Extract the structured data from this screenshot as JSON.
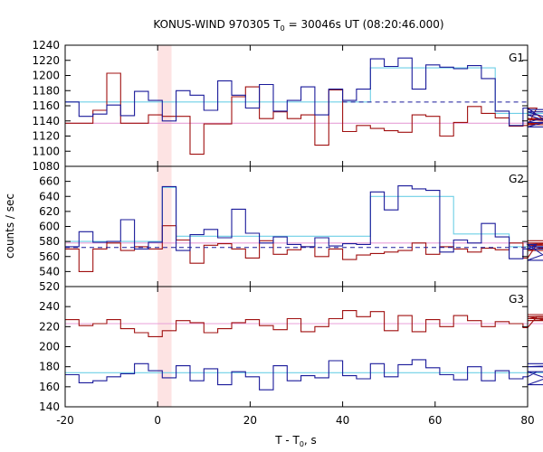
{
  "chart_data": {
    "type": "line",
    "title": "KONUS-WIND 970305 T",
    "title_sub": "0",
    "title_rest": " = 30046s UT (08:20:46.000)",
    "xlabel": "T - T",
    "xlabel_sub": "0",
    "xlabel_rest": ", s",
    "ylabel": "counts / sec",
    "xlim": [
      -20,
      80
    ],
    "xticks": [
      "-20",
      "0",
      "20",
      "40",
      "60",
      "80"
    ],
    "highlight_region": [
      0,
      3
    ],
    "bin_width": 3,
    "bin_start": -20,
    "colors": {
      "red": "#a01010",
      "blue": "#1a1a9a",
      "cyan": "#6ecfe6",
      "pink": "#e8a0d8",
      "highlight": "#fde3e3"
    },
    "panels": [
      {
        "label": "G1",
        "ylim": [
          1080,
          1240
        ],
        "yticks": [
          "1080",
          "1100",
          "1120",
          "1140",
          "1160",
          "1180",
          "1200",
          "1220",
          "1240"
        ],
        "series": [
          {
            "color": "red",
            "values": [
              1137,
              1137,
              1154,
              1203,
              1137,
              1137,
              1148,
              1146,
              1146,
              1096,
              1136,
              1136,
              1172,
              1185,
              1143,
              1152,
              1143,
              1148,
              1108,
              1181,
              1126,
              1134,
              1130,
              1127,
              1125,
              1148,
              1146,
              1120,
              1138,
              1159,
              1150,
              1144,
              1133,
              1134,
              1157,
              1135,
              1142,
              1137,
              1143
            ]
          },
          {
            "color": "blue",
            "values": [
              1165,
              1146,
              1149,
              1161,
              1147,
              1179,
              1167,
              1140,
              1180,
              1174,
              1154,
              1193,
              1174,
              1157,
              1188,
              1153,
              1167,
              1185,
              1148,
              1182,
              1167,
              1182,
              1222,
              1212,
              1223,
              1182,
              1214,
              1211,
              1209,
              1213,
              1196,
              1153,
              1134,
              1157,
              1148,
              1138,
              1152,
              1132,
              1155
            ]
          },
          {
            "color": "cyan",
            "values": [
              1165,
              1165,
              1165,
              1165,
              1165,
              1165,
              1165,
              1165,
              1165,
              1165,
              1165,
              1165,
              1165,
              1165,
              1165,
              1165,
              1165,
              1165,
              1165,
              1165,
              1165,
              1165,
              1210,
              1210,
              1210,
              1210,
              1210,
              1210,
              1210,
              1210,
              1210,
              1150,
              1150,
              1150,
              1150,
              1150,
              1150,
              1150,
              1150
            ]
          },
          {
            "color": "pink",
            "values": [
              1137,
              1137,
              1137,
              1137,
              1137,
              1137,
              1137,
              1137,
              1137,
              1137,
              1137,
              1137,
              1137,
              1137,
              1137,
              1137,
              1137,
              1137,
              1137,
              1137,
              1137,
              1137,
              1137,
              1137,
              1137,
              1137,
              1137,
              1137,
              1137,
              1137,
              1137,
              1137,
              1137,
              1137,
              1137,
              1137,
              1137,
              1137,
              1137
            ]
          }
        ],
        "dashed": [
          {
            "color": "blue",
            "x": [
              40,
              80
            ],
            "y": [
              1165,
              1165
            ]
          }
        ]
      },
      {
        "label": "G2",
        "ylim": [
          520,
          680
        ],
        "yticks": [
          "520",
          "540",
          "560",
          "580",
          "600",
          "620",
          "640",
          "660"
        ],
        "series": [
          {
            "color": "red",
            "values": [
              570,
              540,
              570,
              578,
              568,
              573,
              570,
              601,
              582,
              551,
              575,
              577,
              570,
              558,
              581,
              563,
              569,
              573,
              560,
              570,
              556,
              562,
              564,
              566,
              568,
              578,
              563,
              573,
              570,
              566,
              571,
              569,
              578,
              558,
              576,
              568,
              578,
              575,
              581
            ]
          },
          {
            "color": "blue",
            "values": [
              573,
              593,
              579,
              580,
              609,
              570,
              579,
              653,
              568,
              589,
              596,
              585,
              623,
              591,
              578,
              586,
              576,
              573,
              585,
              574,
              577,
              576,
              646,
              622,
              654,
              650,
              648,
              566,
              582,
              578,
              604,
              586,
              557,
              570,
              576,
              555,
              573,
              573,
              570
            ]
          },
          {
            "color": "cyan",
            "values": [
              580,
              580,
              580,
              580,
              580,
              580,
              580,
              652,
              587,
              587,
              587,
              587,
              587,
              587,
              587,
              587,
              587,
              587,
              587,
              587,
              587,
              587,
              640,
              640,
              640,
              640,
              640,
              640,
              590,
              590,
              590,
              590,
              573,
              573,
              573,
              573,
              573,
              573,
              573
            ]
          },
          {
            "color": "pink",
            "values": [
              578,
              578,
              578,
              578,
              578,
              578,
              578,
              578,
              578,
              578,
              578,
              578,
              578,
              578,
              578,
              578,
              578,
              578,
              578,
              578,
              578,
              578,
              578,
              578,
              578,
              578,
              578,
              578,
              578,
              578,
              578,
              578,
              578,
              578,
              578,
              578,
              578,
              578,
              578
            ]
          }
        ],
        "dashed": [
          {
            "color": "blue",
            "x": [
              -20,
              80
            ],
            "y": [
              572,
              572
            ]
          }
        ]
      },
      {
        "label": "G3",
        "ylim": [
          140,
          260
        ],
        "yticks": [
          "140",
          "160",
          "180",
          "200",
          "220",
          "240"
        ],
        "series": [
          {
            "color": "red",
            "values": [
              227,
              221,
              223,
              227,
              218,
              214,
              210,
              216,
              226,
              224,
              214,
              218,
              224,
              227,
              221,
              217,
              228,
              215,
              220,
              228,
              236,
              230,
              235,
              216,
              231,
              215,
              227,
              220,
              231,
              226,
              220,
              225,
              223,
              219,
              230,
              226,
              228,
              230,
              232
            ]
          },
          {
            "color": "blue",
            "values": [
              172,
              164,
              166,
              170,
              173,
              183,
              176,
              169,
              181,
              166,
              178,
              162,
              175,
              170,
              157,
              181,
              166,
              171,
              169,
              186,
              171,
              168,
              183,
              170,
              182,
              187,
              179,
              172,
              167,
              180,
              166,
              176,
              168,
              170,
              175,
              175,
              162,
              180,
              183
            ]
          },
          {
            "color": "cyan",
            "values": [
              174,
              174,
              174,
              174,
              174,
              174,
              174,
              174,
              174,
              174,
              174,
              174,
              174,
              174,
              174,
              174,
              174,
              174,
              174,
              174,
              174,
              174,
              174,
              174,
              174,
              174,
              174,
              174,
              174,
              174,
              174,
              174,
              174,
              174,
              174,
              174,
              174,
              174,
              174
            ]
          },
          {
            "color": "pink",
            "values": [
              223,
              223,
              223,
              223,
              223,
              223,
              223,
              223,
              223,
              223,
              223,
              223,
              223,
              223,
              223,
              223,
              223,
              223,
              223,
              223,
              223,
              223,
              223,
              223,
              223,
              223,
              223,
              223,
              223,
              223,
              223,
              223,
              223,
              223,
              223,
              223,
              223,
              223,
              223
            ]
          }
        ],
        "dashed": []
      }
    ]
  }
}
